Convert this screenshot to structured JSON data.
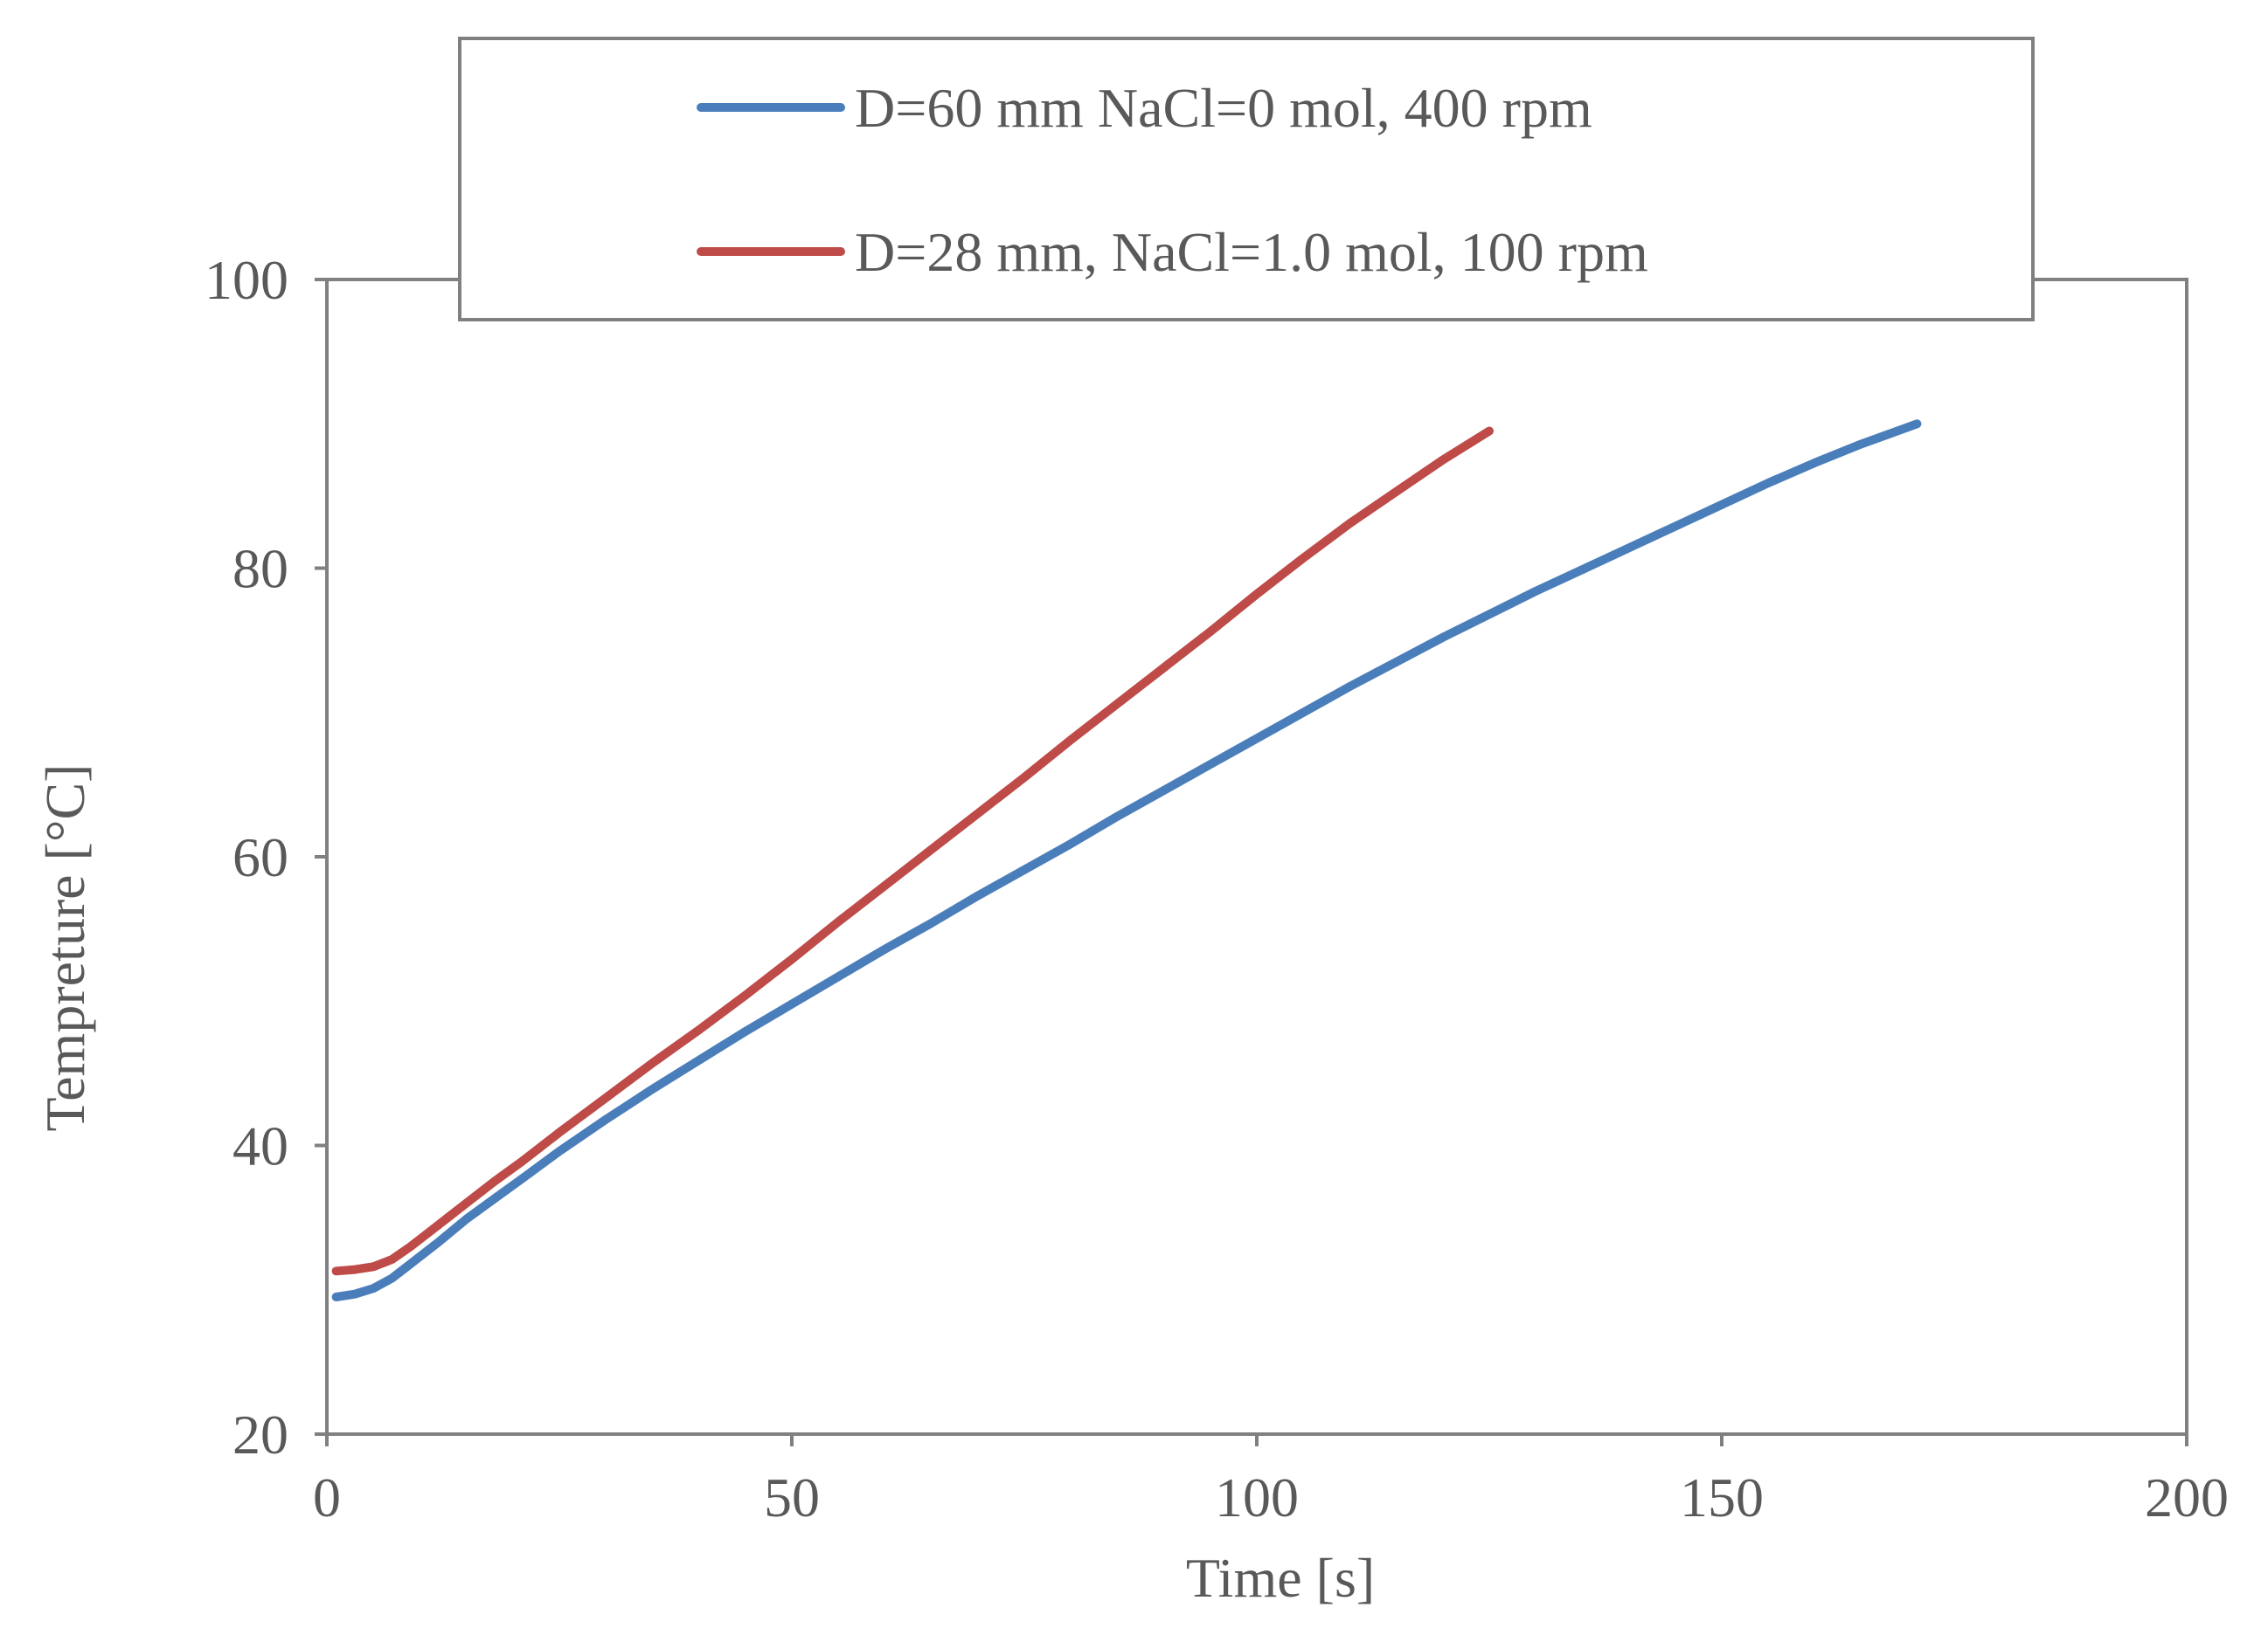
{
  "chart_data": {
    "type": "line",
    "title": "",
    "xlabel": "Time [s]",
    "ylabel": "Tempreture [°C]",
    "xlim": [
      0,
      200
    ],
    "ylim": [
      20,
      100
    ],
    "xticks": [
      0,
      50,
      100,
      150,
      200
    ],
    "yticks": [
      20,
      40,
      60,
      80,
      100
    ],
    "xtick_labels": [
      "0",
      "50",
      "100",
      "150",
      "200"
    ],
    "ytick_labels": [
      "20",
      "40",
      "60",
      "80",
      "100"
    ],
    "grid": false,
    "legend_position": "top-center",
    "series": [
      {
        "name": "D=60 mm NaCl=0 mol, 400 rpm",
        "color": "#4a7ebb",
        "x": [
          1,
          3,
          5,
          7,
          9,
          12,
          15,
          18,
          21,
          25,
          30,
          35,
          40,
          45,
          50,
          55,
          60,
          65,
          70,
          75,
          80,
          85,
          90,
          95,
          100,
          105,
          110,
          115,
          120,
          125,
          130,
          135,
          140,
          145,
          150,
          155,
          160,
          165,
          171
        ],
        "y": [
          29.5,
          29.7,
          30.1,
          30.8,
          31.8,
          33.3,
          34.9,
          36.3,
          37.7,
          39.6,
          41.8,
          43.9,
          45.9,
          47.9,
          49.8,
          51.7,
          53.6,
          55.4,
          57.3,
          59.1,
          60.9,
          62.8,
          64.6,
          66.4,
          68.2,
          70.0,
          71.8,
          73.5,
          75.2,
          76.8,
          78.4,
          79.9,
          81.4,
          82.9,
          84.4,
          85.9,
          87.3,
          88.6,
          90.0
        ]
      },
      {
        "name": "D=28 mm, NaCl=1.0 mol, 100 rpm",
        "color": "#be4b48",
        "x": [
          1,
          3,
          5,
          7,
          9,
          12,
          15,
          18,
          21,
          25,
          30,
          35,
          40,
          45,
          50,
          55,
          60,
          65,
          70,
          75,
          80,
          85,
          90,
          95,
          100,
          105,
          110,
          115,
          120,
          125
        ],
        "y": [
          31.3,
          31.4,
          31.6,
          32.1,
          33.0,
          34.5,
          36.0,
          37.5,
          38.9,
          40.9,
          43.3,
          45.7,
          48.0,
          50.4,
          52.9,
          55.5,
          58.0,
          60.5,
          63.0,
          65.5,
          68.1,
          70.6,
          73.1,
          75.6,
          78.2,
          80.7,
          83.1,
          85.3,
          87.5,
          89.5
        ]
      }
    ]
  }
}
